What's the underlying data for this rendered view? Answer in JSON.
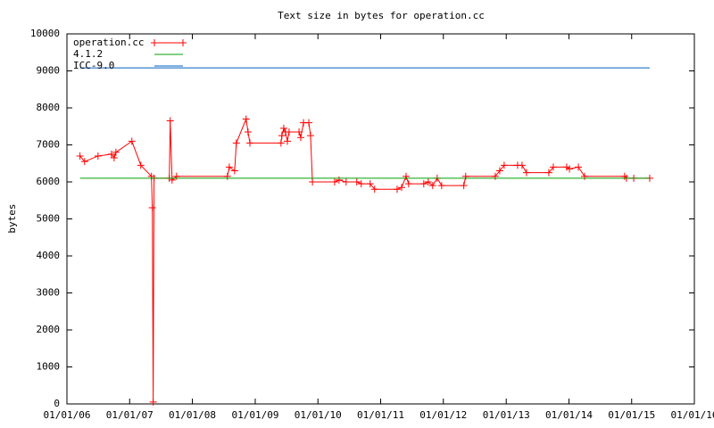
{
  "chart_data": {
    "type": "line",
    "title": "Text size in bytes for operation.cc",
    "y_label": "bytes",
    "xlim": [
      "2006-01-01",
      "2016-01-01"
    ],
    "xticks": [
      {
        "value": "2006-01-01",
        "label": "01/01/06"
      },
      {
        "value": "2007-01-01",
        "label": "01/01/07"
      },
      {
        "value": "2008-01-01",
        "label": "01/01/08"
      },
      {
        "value": "2009-01-01",
        "label": "01/01/09"
      },
      {
        "value": "2010-01-01",
        "label": "01/01/10"
      },
      {
        "value": "2011-01-01",
        "label": "01/01/11"
      },
      {
        "value": "2012-01-01",
        "label": "01/01/12"
      },
      {
        "value": "2013-01-01",
        "label": "01/01/13"
      },
      {
        "value": "2014-01-01",
        "label": "01/01/14"
      },
      {
        "value": "2015-01-01",
        "label": "01/01/15"
      },
      {
        "value": "2016-01-01",
        "label": "01/01/16"
      }
    ],
    "ylim": [
      0,
      10000
    ],
    "yticks": [
      0,
      1000,
      2000,
      3000,
      4000,
      5000,
      6000,
      7000,
      8000,
      9000,
      10000
    ],
    "legend": "top-left",
    "series": [
      {
        "name": "operation.cc",
        "color": "#ff0000",
        "marker": "plus",
        "x": [
          "2006-03-18",
          "2006-04-14",
          "2006-07-01",
          "2006-09-17",
          "2006-10-03",
          "2006-10-13",
          "2007-01-14",
          "2007-03-07",
          "2007-05-08",
          "2007-05-13",
          "2007-05-18",
          "2007-05-23",
          "2007-08-20",
          "2007-08-25",
          "2007-09-05",
          "2007-10-01",
          "2008-07-23",
          "2008-08-03",
          "2008-09-03",
          "2008-09-13",
          "2008-11-09",
          "2008-11-20",
          "2008-12-01",
          "2009-05-31",
          "2009-06-05",
          "2009-06-16",
          "2009-06-26",
          "2009-07-07",
          "2009-07-17",
          "2009-09-13",
          "2009-09-23",
          "2009-10-09",
          "2009-11-09",
          "2009-11-19",
          "2009-11-30",
          "2010-04-08",
          "2010-05-04",
          "2010-06-14",
          "2010-08-15",
          "2010-09-10",
          "2010-11-01",
          "2010-11-27",
          "2011-04-07",
          "2011-05-03",
          "2011-05-29",
          "2011-06-13",
          "2011-09-09",
          "2011-10-05",
          "2011-10-31",
          "2011-11-26",
          "2011-12-22",
          "2012-04-29",
          "2012-05-10",
          "2012-10-29",
          "2012-11-24",
          "2012-12-20",
          "2013-03-08",
          "2013-04-03",
          "2013-04-29",
          "2013-09-06",
          "2013-10-02",
          "2013-12-19",
          "2014-01-04",
          "2014-02-25",
          "2014-04-02",
          "2014-11-21",
          "2014-12-02",
          "2015-01-13",
          "2015-04-16"
        ],
        "values": [
          6700,
          6550,
          6700,
          6750,
          6650,
          6800,
          7100,
          6450,
          6150,
          5300,
          50,
          6100,
          6100,
          7650,
          6050,
          6150,
          6150,
          6400,
          6300,
          7050,
          7700,
          7350,
          7050,
          7050,
          7250,
          7450,
          7350,
          7100,
          7350,
          7350,
          7200,
          7600,
          7600,
          7250,
          6000,
          6000,
          6050,
          6000,
          6000,
          5950,
          5950,
          5800,
          5800,
          5850,
          6150,
          5950,
          5950,
          6000,
          5900,
          6100,
          5900,
          5900,
          6150,
          6150,
          6300,
          6450,
          6450,
          6450,
          6250,
          6250,
          6400,
          6400,
          6350,
          6400,
          6150,
          6150,
          6100,
          6100,
          6100
        ]
      },
      {
        "name": "4.1.2",
        "color": "#00a000",
        "x": [
          "2006-03-18",
          "2015-04-16"
        ],
        "values": [
          6100,
          6100
        ]
      },
      {
        "name": "ICC-9.0",
        "color": "#0060c0",
        "x": [
          "2006-03-18",
          "2015-04-16"
        ],
        "values": [
          9080,
          9080
        ]
      }
    ]
  }
}
